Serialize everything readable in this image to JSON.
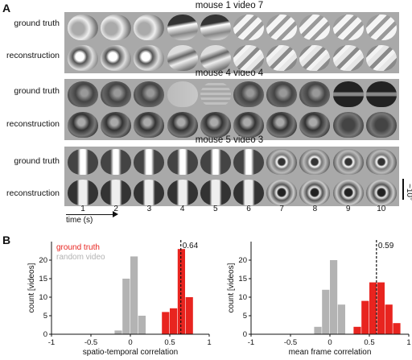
{
  "panel_a": {
    "letter": "A",
    "row_labels": {
      "gt": "ground truth",
      "rec": "reconstruction"
    },
    "groups": [
      {
        "title": "mouse 1 video 7"
      },
      {
        "title": "mouse 4 video 4"
      },
      {
        "title": "mouse 5 video 3"
      }
    ],
    "frame_numbers": [
      "1",
      "2",
      "3",
      "4",
      "5",
      "6",
      "7",
      "8",
      "9",
      "10"
    ],
    "time_label": "time (s)",
    "scale_label": "~10°"
  },
  "panel_b": {
    "letter": "B"
  },
  "chart_data": [
    {
      "type": "bar",
      "ylabel": "count [videos]",
      "xlabel": "spatio-temporal correlation",
      "xlim": [
        -1,
        1
      ],
      "ylim": [
        0,
        25
      ],
      "xticks": [
        "-1",
        "-0.5",
        "0",
        "0.5",
        "1"
      ],
      "yticks": [
        "0",
        "5",
        "10",
        "15",
        "20"
      ],
      "bin_width": 0.1,
      "legend": [
        "ground truth",
        "random video"
      ],
      "legend_position": "top-left",
      "series": [
        {
          "name": "ground truth",
          "color": "#e8241f",
          "bins": [
            [
              0.4,
              6
            ],
            [
              0.5,
              7
            ],
            [
              0.6,
              23
            ],
            [
              0.7,
              10
            ]
          ]
        },
        {
          "name": "random video",
          "color": "#b3b3b3",
          "bins": [
            [
              -0.2,
              1
            ],
            [
              -0.1,
              15
            ],
            [
              0.0,
              21
            ],
            [
              0.1,
              5
            ]
          ]
        }
      ],
      "mean_line": {
        "value": 0.64,
        "label": "0.64"
      }
    },
    {
      "type": "bar",
      "ylabel": "count [videos]",
      "xlabel": "mean frame correlation",
      "xlim": [
        -1,
        1
      ],
      "ylim": [
        0,
        25
      ],
      "xticks": [
        "-1",
        "-0.5",
        "0",
        "0.5",
        "1"
      ],
      "yticks": [
        "0",
        "5",
        "10",
        "15",
        "20"
      ],
      "bin_width": 0.1,
      "series": [
        {
          "name": "ground truth",
          "color": "#e8241f",
          "bins": [
            [
              0.3,
              2
            ],
            [
              0.4,
              9
            ],
            [
              0.5,
              14
            ],
            [
              0.6,
              14
            ],
            [
              0.7,
              8
            ],
            [
              0.8,
              3
            ]
          ]
        },
        {
          "name": "random video",
          "color": "#b3b3b3",
          "bins": [
            [
              -0.2,
              2
            ],
            [
              -0.1,
              12
            ],
            [
              0.0,
              20
            ],
            [
              0.1,
              8
            ]
          ]
        }
      ],
      "mean_line": {
        "value": 0.59,
        "label": "0.59"
      }
    }
  ]
}
